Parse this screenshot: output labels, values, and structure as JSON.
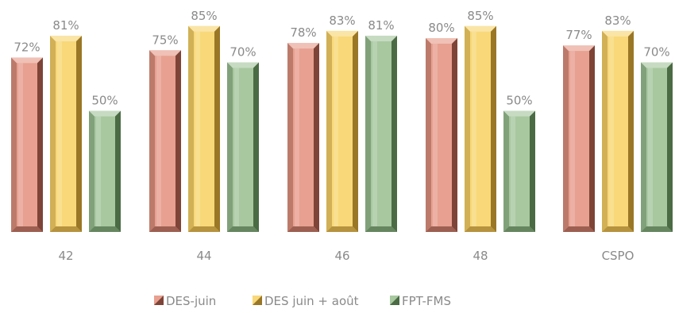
{
  "chart_data": {
    "type": "bar",
    "categories": [
      "42",
      "44",
      "46",
      "48",
      "CSPO"
    ],
    "series": [
      {
        "name": "DES-juin",
        "values": [
          72,
          75,
          78,
          80,
          77
        ],
        "labels": [
          "72%",
          "75%",
          "78%",
          "80%",
          "77%"
        ],
        "color": "#e8a090",
        "dark": "#6b3428"
      },
      {
        "name": "DES juin + août",
        "values": [
          81,
          85,
          83,
          85,
          83
        ],
        "labels": [
          "81%",
          "85%",
          "83%",
          "85%",
          "83%"
        ],
        "color": "#f8d878",
        "dark": "#8a6618"
      },
      {
        "name": "FPT-FMS",
        "values": [
          50,
          70,
          81,
          50,
          70
        ],
        "labels": [
          "50%",
          "70%",
          "81%",
          "50%",
          "70%"
        ],
        "color": "#a8c8a0",
        "dark": "#3a5a34"
      }
    ],
    "ylim": [
      0,
      100
    ],
    "grid": false,
    "legend": "bottom"
  }
}
